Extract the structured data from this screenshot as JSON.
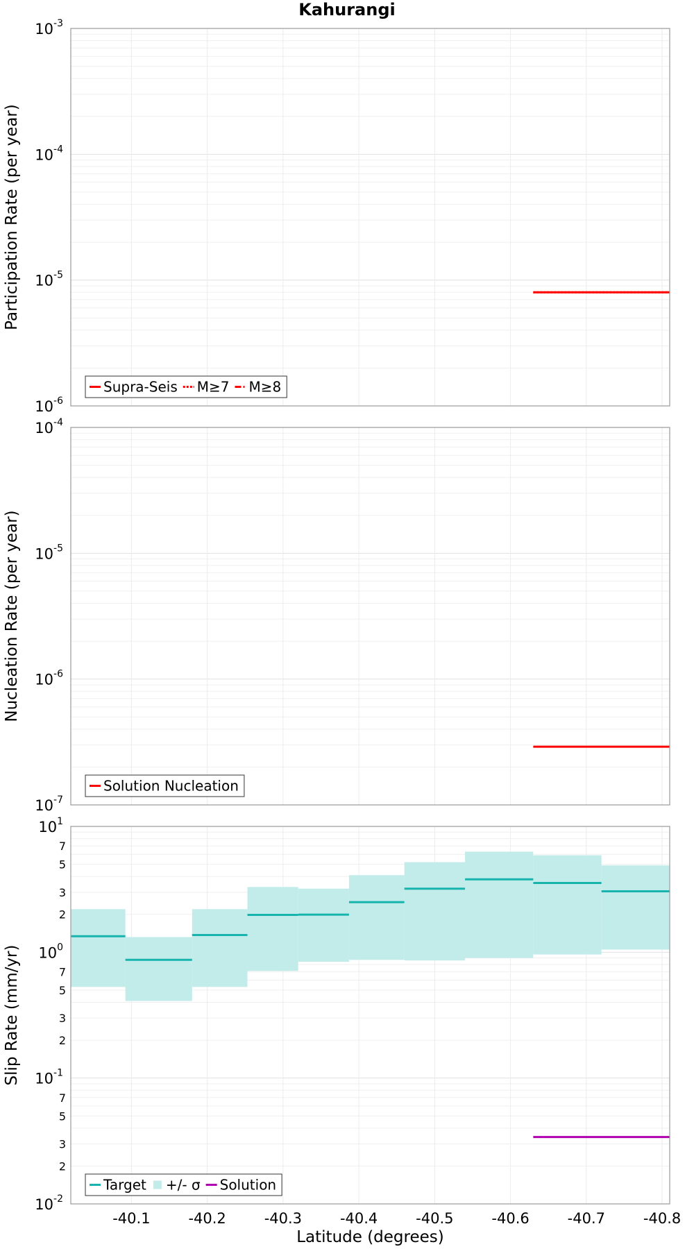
{
  "title": "Kahurangi",
  "chart_data": [
    {
      "type": "line",
      "ylabel": "Participation Rate (per year)",
      "yscale": "log",
      "ylim": [
        1e-06,
        0.001
      ],
      "xlim": [
        -40.02,
        -40.81
      ],
      "grid": true,
      "legend_position": "bottom-left",
      "major_ticks": [
        {
          "base": "10",
          "exp": "-6",
          "v": 1e-06
        },
        {
          "base": "10",
          "exp": "-5",
          "v": 1e-05
        },
        {
          "base": "10",
          "exp": "-4",
          "v": 0.0001
        },
        {
          "base": "10",
          "exp": "-3",
          "v": 0.001
        }
      ],
      "minor_labels": [],
      "series": [
        {
          "name": "Supra-Seis",
          "color": "#ff0000",
          "dash": "solid",
          "segments": [
            [
              -40.63,
              -40.81,
              8e-06
            ]
          ]
        },
        {
          "name": "M≥7",
          "color": "#ff0000",
          "dash": "dotted",
          "segments": [
            [
              -40.63,
              -40.81,
              8e-06
            ]
          ]
        },
        {
          "name": "M≥8",
          "color": "#ff0000",
          "dash": "dashdot",
          "segments": []
        }
      ]
    },
    {
      "type": "line",
      "ylabel": "Nucleation Rate (per year)",
      "yscale": "log",
      "ylim": [
        1e-07,
        0.0001
      ],
      "xlim": [
        -40.02,
        -40.81
      ],
      "grid": true,
      "legend_position": "bottom-left",
      "major_ticks": [
        {
          "base": "10",
          "exp": "-7",
          "v": 1e-07
        },
        {
          "base": "10",
          "exp": "-6",
          "v": 1e-06
        },
        {
          "base": "10",
          "exp": "-5",
          "v": 1e-05
        },
        {
          "base": "10",
          "exp": "-4",
          "v": 0.0001
        }
      ],
      "minor_labels": [],
      "series": [
        {
          "name": "Solution Nucleation",
          "color": "#ff0000",
          "dash": "solid",
          "segments": [
            [
              -40.63,
              -40.81,
              2.9e-07
            ]
          ]
        }
      ]
    },
    {
      "type": "line",
      "ylabel": "Slip Rate (mm/yr)",
      "xlabel": "Latitude (degrees)",
      "yscale": "log",
      "ylim": [
        0.01,
        10
      ],
      "xlim": [
        -40.02,
        -40.81
      ],
      "grid": true,
      "legend_position": "bottom-left",
      "major_ticks": [
        {
          "base": "10",
          "exp": "-2",
          "v": 0.01
        },
        {
          "base": "10",
          "exp": "-1",
          "v": 0.1
        },
        {
          "base": "10",
          "exp": "0",
          "v": 1
        },
        {
          "base": "10",
          "exp": "1",
          "v": 10
        }
      ],
      "minor_labels": [
        {
          "t": "2",
          "v": 0.02
        },
        {
          "t": "3",
          "v": 0.03
        },
        {
          "t": "5",
          "v": 0.05
        },
        {
          "t": "7",
          "v": 0.07
        },
        {
          "t": "2",
          "v": 0.2
        },
        {
          "t": "3",
          "v": 0.3
        },
        {
          "t": "5",
          "v": 0.5
        },
        {
          "t": "7",
          "v": 0.7
        },
        {
          "t": "2",
          "v": 2
        },
        {
          "t": "3",
          "v": 3
        },
        {
          "t": "5",
          "v": 5
        },
        {
          "t": "7",
          "v": 7
        }
      ],
      "x_tick_labels": [
        "-40.1",
        "-40.2",
        "-40.3",
        "-40.4",
        "-40.5",
        "-40.6",
        "-40.7",
        "-40.8"
      ],
      "x_ticks": [
        -40.1,
        -40.2,
        -40.3,
        -40.4,
        -40.5,
        -40.6,
        -40.7,
        -40.8
      ],
      "bands": {
        "name": "+/- σ",
        "color": "#c2ecea",
        "segments": [
          [
            -40.02,
            -40.092,
            0.53,
            2.2
          ],
          [
            -40.092,
            -40.18,
            0.41,
            1.32
          ],
          [
            -40.18,
            -40.253,
            0.53,
            2.2
          ],
          [
            -40.253,
            -40.32,
            0.71,
            3.3
          ],
          [
            -40.32,
            -40.387,
            0.84,
            3.2
          ],
          [
            -40.387,
            -40.46,
            0.87,
            4.1
          ],
          [
            -40.46,
            -40.54,
            0.86,
            5.2
          ],
          [
            -40.54,
            -40.63,
            0.9,
            6.3
          ],
          [
            -40.63,
            -40.72,
            0.96,
            5.9
          ],
          [
            -40.72,
            -40.81,
            1.05,
            4.9
          ]
        ]
      },
      "series": [
        {
          "name": "Target",
          "color": "#17b3ad",
          "dash": "solid",
          "segments": [
            [
              -40.02,
              -40.092,
              1.34
            ],
            [
              -40.092,
              -40.18,
              0.87
            ],
            [
              -40.18,
              -40.253,
              1.37
            ],
            [
              -40.253,
              -40.32,
              1.98
            ],
            [
              -40.32,
              -40.387,
              1.99
            ],
            [
              -40.387,
              -40.46,
              2.5
            ],
            [
              -40.46,
              -40.54,
              3.2
            ],
            [
              -40.54,
              -40.63,
              3.8
            ],
            [
              -40.63,
              -40.72,
              3.55
            ],
            [
              -40.72,
              -40.81,
              3.05
            ]
          ]
        },
        {
          "name": "Solution",
          "color": "#b000b0",
          "dash": "solid",
          "segments": [
            [
              -40.63,
              -40.81,
              0.034
            ]
          ]
        }
      ]
    }
  ]
}
